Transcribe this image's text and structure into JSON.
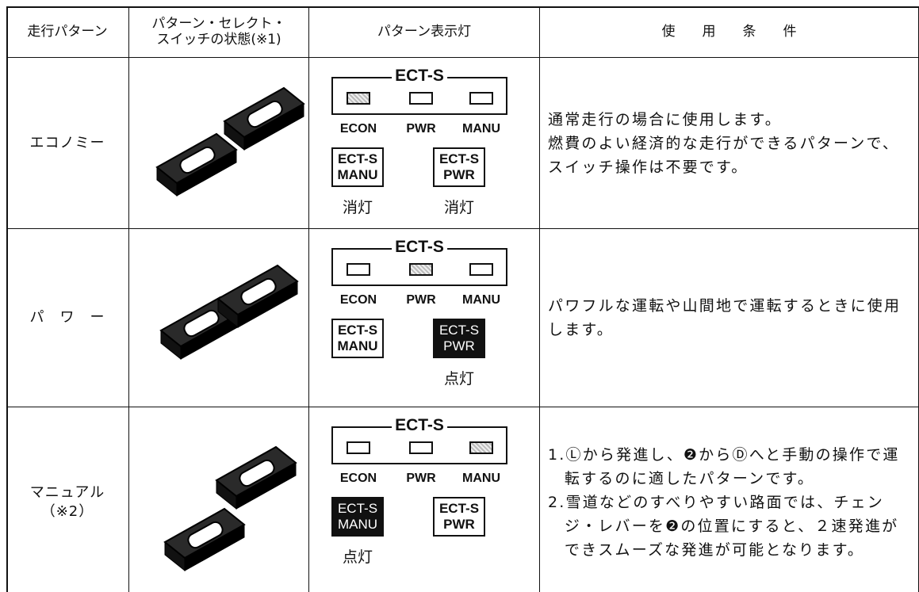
{
  "table": {
    "headers": [
      [
        "走行パターン"
      ],
      [
        "パターン・セレクト・",
        "スイッチの状態(※1)"
      ],
      [
        "パターン表示灯"
      ],
      [
        "使　　用　　条　　件"
      ]
    ],
    "rows": [
      {
        "pattern": [
          "エコノミー"
        ],
        "panel": {
          "title": "ECT-S",
          "lamps": [
            {
              "label": "ECON",
              "on": true
            },
            {
              "label": "PWR",
              "on": false
            },
            {
              "label": "MANU",
              "on": false
            }
          ],
          "switches": [
            {
              "lines": [
                "ECT-S",
                "MANU"
              ],
              "lit": false,
              "status": "消灯"
            },
            {
              "lines": [
                "ECT-S",
                "PWR"
              ],
              "lit": false,
              "status": "消灯"
            }
          ]
        },
        "usage": {
          "paragraphs": [
            "通常走行の場合に使用します。",
            "燃費のよい経済的な走行ができるパターンで、スイッチ操作は不要です。"
          ]
        }
      },
      {
        "pattern": [
          "パ　ワ　ー"
        ],
        "panel": {
          "title": "ECT-S",
          "lamps": [
            {
              "label": "ECON",
              "on": false
            },
            {
              "label": "PWR",
              "on": true
            },
            {
              "label": "MANU",
              "on": false
            }
          ],
          "switches": [
            {
              "lines": [
                "ECT-S",
                "MANU"
              ],
              "lit": false
            },
            {
              "lines": [
                "ECT-S",
                "PWR"
              ],
              "lit": true,
              "status": "点灯"
            }
          ]
        },
        "usage": {
          "paragraphs": [
            "パワフルな運転や山間地で運転するときに使用します。"
          ]
        }
      },
      {
        "pattern": [
          "マニュアル",
          "（※2）"
        ],
        "panel": {
          "title": "ECT-S",
          "lamps": [
            {
              "label": "ECON",
              "on": false
            },
            {
              "label": "PWR",
              "on": false
            },
            {
              "label": "MANU",
              "on": true
            }
          ],
          "switches": [
            {
              "lines": [
                "ECT-S",
                "MANU"
              ],
              "lit": true,
              "status": "点灯"
            },
            {
              "lines": [
                "ECT-S",
                "PWR"
              ],
              "lit": false
            }
          ]
        },
        "usage": {
          "items": [
            "1.Ⓛから発進し、❷からⒹへと手動の操作で運転するのに適したパターンです。",
            "2.雪道などのすべりやすい路面では、チェンジ・レバーを❷の位置にすると、２速発進ができスムーズな発進が可能となります。"
          ]
        }
      }
    ]
  }
}
